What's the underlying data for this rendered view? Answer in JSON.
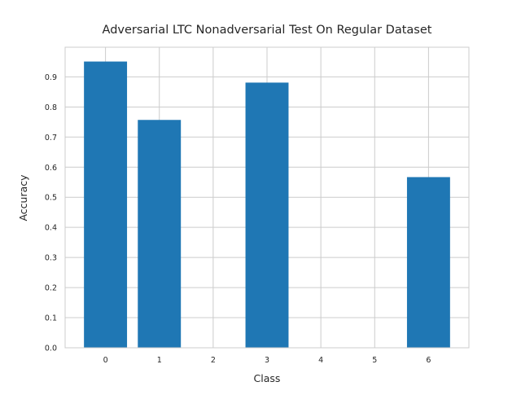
{
  "chart_data": {
    "type": "bar",
    "title": "Adversarial LTC Nonadversarial Test On Regular Dataset",
    "xlabel": "Class",
    "ylabel": "Accuracy",
    "categories": [
      "0",
      "1",
      "2",
      "3",
      "4",
      "5",
      "6"
    ],
    "values": [
      0.951,
      0.757,
      0,
      0.881,
      0,
      0,
      0.567
    ],
    "xlim": [
      -0.75,
      6.75
    ],
    "ylim": [
      0,
      0.9985
    ],
    "yticks": [
      "0.0",
      "0.1",
      "0.2",
      "0.3",
      "0.4",
      "0.5",
      "0.6",
      "0.7",
      "0.8",
      "0.9"
    ],
    "grid": true,
    "colors": {
      "bar": "#1f77b4",
      "grid": "#cccccc",
      "frame": "#cccccc",
      "background": "#ffffff"
    }
  }
}
